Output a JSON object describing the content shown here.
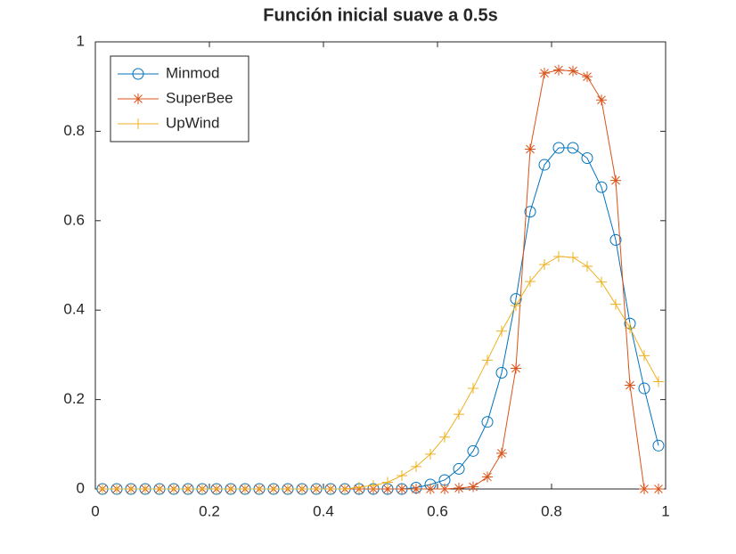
{
  "chart_data": {
    "type": "line",
    "title": "Función inicial suave a 0.5s",
    "x": [
      0.0125,
      0.0375,
      0.0625,
      0.0875,
      0.1125,
      0.1375,
      0.1625,
      0.1875,
      0.2125,
      0.2375,
      0.2625,
      0.2875,
      0.3125,
      0.3375,
      0.3625,
      0.3875,
      0.4125,
      0.4375,
      0.4625,
      0.4875,
      0.5125,
      0.5375,
      0.5625,
      0.5875,
      0.6125,
      0.6375,
      0.6625,
      0.6875,
      0.7125,
      0.7375,
      0.7625,
      0.7875,
      0.8125,
      0.8375,
      0.8625,
      0.8875,
      0.9125,
      0.9375,
      0.9625,
      0.9875
    ],
    "series": [
      {
        "name": "Minmod",
        "color": "#0072bd",
        "marker": "circle",
        "values": [
          0,
          0,
          0,
          0,
          0,
          0,
          0,
          0,
          0,
          0,
          0,
          0,
          0,
          0,
          0,
          0,
          0,
          0,
          0,
          0,
          0,
          0,
          0.003,
          0.01,
          0.02,
          0.045,
          0.085,
          0.15,
          0.26,
          0.425,
          0.62,
          0.725,
          0.763,
          0.763,
          0.74,
          0.675,
          0.557,
          0.37,
          0.225,
          0.097
        ]
      },
      {
        "name": "SuperBee",
        "color": "#d95319",
        "marker": "asterisk",
        "values": [
          0,
          0,
          0,
          0,
          0,
          0,
          0,
          0,
          0,
          0,
          0,
          0,
          0,
          0,
          0,
          0,
          0,
          0,
          0,
          0,
          0,
          0,
          0,
          0,
          0,
          0.002,
          0.005,
          0.027,
          0.08,
          0.27,
          0.76,
          0.93,
          0.937,
          0.935,
          0.922,
          0.87,
          0.69,
          0.232,
          0,
          0
        ]
      },
      {
        "name": "UpWind",
        "color": "#edb120",
        "marker": "plus",
        "values": [
          0,
          0,
          0,
          0,
          0,
          0,
          0,
          0,
          0,
          0,
          0,
          0,
          0,
          0,
          0,
          0,
          0,
          0,
          0.004,
          0.008,
          0.015,
          0.03,
          0.05,
          0.078,
          0.116,
          0.167,
          0.225,
          0.288,
          0.353,
          0.41,
          0.464,
          0.502,
          0.52,
          0.518,
          0.498,
          0.463,
          0.413,
          0.36,
          0.298,
          0.24
        ]
      }
    ],
    "xlim": [
      0,
      1
    ],
    "xticks": [
      0,
      0.2,
      0.4,
      0.6,
      0.8,
      1
    ],
    "ylim": [
      0,
      1
    ],
    "yticks": [
      0,
      0.2,
      0.4,
      0.6,
      0.8,
      1
    ],
    "legend": "northwest"
  }
}
